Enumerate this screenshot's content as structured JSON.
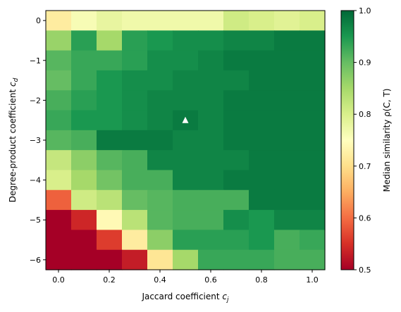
{
  "chart_data": {
    "type": "heatmap",
    "xlabel": "Jaccard coefficient",
    "xlabel_sub": "j",
    "ylabel": "Degree-product coefficient",
    "ylabel_sub": "d",
    "colorbar_label": "Median similarity ρ(C, T)",
    "colormap": "RdYlGn",
    "x_centers": [
      0.0,
      0.1,
      0.2,
      0.3,
      0.4,
      0.5,
      0.6,
      0.7,
      0.8,
      0.9,
      1.0
    ],
    "y_centers": [
      0.0,
      -0.5,
      -1.0,
      -1.5,
      -2.0,
      -2.5,
      -3.0,
      -3.5,
      -4.0,
      -4.5,
      -5.0,
      -5.5,
      -6.0
    ],
    "x_ticks": [
      0.0,
      0.2,
      0.4,
      0.6,
      0.8,
      1.0
    ],
    "x_tick_labels": [
      "0.0",
      "0.2",
      "0.4",
      "0.6",
      "0.8",
      "1.0"
    ],
    "y_ticks": [
      0,
      -1,
      -2,
      -3,
      -4,
      -5,
      -6
    ],
    "y_tick_labels": [
      "0",
      "−1",
      "−2",
      "−3",
      "−4",
      "−5",
      "−6"
    ],
    "xlim": [
      -0.05,
      1.05
    ],
    "ylim": [
      -6.25,
      0.25
    ],
    "clim": [
      0.5,
      1.0
    ],
    "colorbar_ticks": [
      0.5,
      0.6,
      0.7,
      0.8,
      0.9,
      1.0
    ],
    "colorbar_tick_labels": [
      "0.5",
      "0.6",
      "0.7",
      "0.8",
      "0.9",
      "1.0"
    ],
    "values": [
      [
        0.72,
        0.76,
        0.78,
        0.77,
        0.77,
        0.77,
        0.77,
        0.81,
        0.8,
        0.79,
        0.8
      ],
      [
        0.86,
        0.94,
        0.85,
        0.94,
        0.95,
        0.96,
        0.96,
        0.97,
        0.97,
        0.98,
        0.98
      ],
      [
        0.91,
        0.93,
        0.93,
        0.94,
        0.96,
        0.96,
        0.97,
        0.98,
        0.98,
        0.98,
        0.98
      ],
      [
        0.9,
        0.93,
        0.95,
        0.96,
        0.96,
        0.97,
        0.97,
        0.97,
        0.98,
        0.98,
        0.98
      ],
      [
        0.92,
        0.94,
        0.95,
        0.96,
        0.97,
        0.97,
        0.97,
        0.98,
        0.98,
        0.98,
        0.98
      ],
      [
        0.93,
        0.95,
        0.95,
        0.96,
        0.97,
        0.98,
        0.97,
        0.98,
        0.98,
        0.98,
        0.98
      ],
      [
        0.91,
        0.92,
        0.98,
        0.98,
        0.98,
        0.97,
        0.97,
        0.98,
        0.98,
        0.98,
        0.98
      ],
      [
        0.82,
        0.87,
        0.91,
        0.92,
        0.97,
        0.97,
        0.97,
        0.97,
        0.98,
        0.98,
        0.98
      ],
      [
        0.8,
        0.85,
        0.89,
        0.92,
        0.92,
        0.97,
        0.97,
        0.98,
        0.98,
        0.98,
        0.98
      ],
      [
        0.59,
        0.81,
        0.83,
        0.9,
        0.91,
        0.92,
        0.92,
        0.92,
        0.98,
        0.98,
        0.98
      ],
      [
        0.5,
        0.54,
        0.74,
        0.83,
        0.91,
        0.92,
        0.92,
        0.96,
        0.95,
        0.97,
        0.97
      ],
      [
        0.5,
        0.5,
        0.56,
        0.72,
        0.87,
        0.94,
        0.94,
        0.94,
        0.95,
        0.92,
        0.93
      ],
      [
        0.5,
        0.5,
        0.5,
        0.53,
        0.71,
        0.85,
        0.93,
        0.93,
        0.93,
        0.92,
        0.92
      ]
    ],
    "marker": {
      "shape": "triangle",
      "x": 0.5,
      "y": -2.5,
      "color": "#ffffff"
    }
  }
}
